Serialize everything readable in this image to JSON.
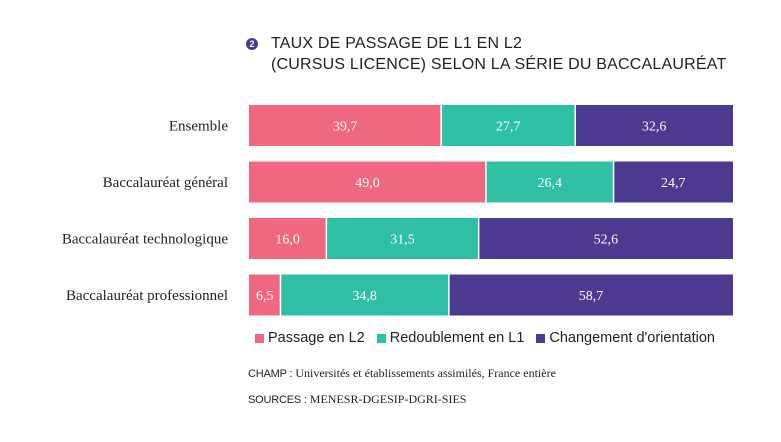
{
  "title": {
    "badge": "2",
    "line1": "TAUX DE PASSAGE DE L1 EN L2",
    "line2": "(CURSUS LICENCE) SELON LA SÉRIE DU BACCALAURÉAT"
  },
  "colors": {
    "passage": "#f0687f",
    "redoublement": "#2ebfa5",
    "changement": "#4b3a8f"
  },
  "chart_data": {
    "type": "bar",
    "orientation": "horizontal",
    "stacked": true,
    "categories": [
      "Ensemble",
      "Baccalauréat général",
      "Baccalauréat technologique",
      "Baccalauréat professionnel"
    ],
    "series": [
      {
        "name": "Passage en L2",
        "color": "#f0687f",
        "values": [
          39.7,
          49.0,
          16.0,
          6.5
        ],
        "labels": [
          "39,7",
          "49,0",
          "16,0",
          "6,5"
        ]
      },
      {
        "name": "Redoublement en L1",
        "color": "#2ebfa5",
        "values": [
          27.7,
          26.4,
          31.5,
          34.8
        ],
        "labels": [
          "27,7",
          "26,4",
          "31,5",
          "34,8"
        ]
      },
      {
        "name": "Changement d'orientation",
        "color": "#4b3a8f",
        "values": [
          32.6,
          24.7,
          52.6,
          58.7
        ],
        "labels": [
          "32,6",
          "24,7",
          "52,6",
          "58,7"
        ]
      }
    ],
    "legend_position": "bottom",
    "grid": false
  },
  "notes": {
    "champ_key": "CHAMP :",
    "champ_text": "Universités et établissements assimilés, France entière",
    "sources_key": "SOURCES :",
    "sources_text": "MENESR-DGESIP-DGRI-SIES"
  }
}
